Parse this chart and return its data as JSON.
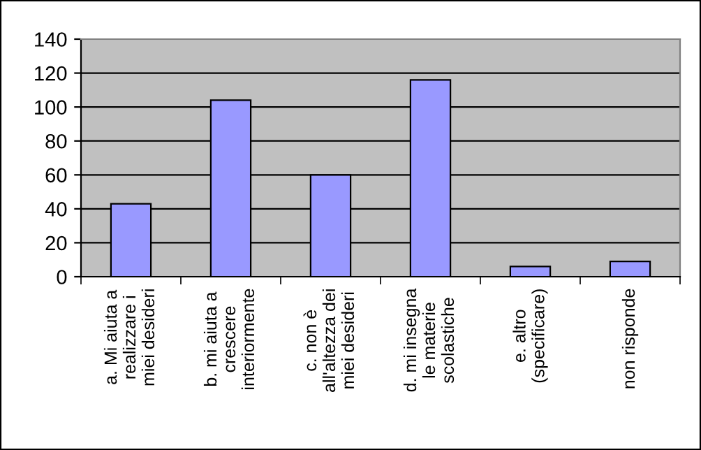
{
  "chart_data": {
    "type": "bar",
    "categories": [
      "a. Mi aiuta a realizzare i miei desideri",
      "b. mi aiuta a crescere interiormente",
      "c. non è all'altezza dei miei desideri",
      "d. mi insegna le materie scolastiche",
      "e. altro (specificare)",
      "non risponde"
    ],
    "values": [
      43,
      104,
      60,
      116,
      6,
      9
    ],
    "color": "#9999ff",
    "ylim": [
      0,
      140
    ],
    "yticks": [
      0,
      20,
      40,
      60,
      80,
      100,
      120,
      140
    ],
    "grid": "y"
  }
}
